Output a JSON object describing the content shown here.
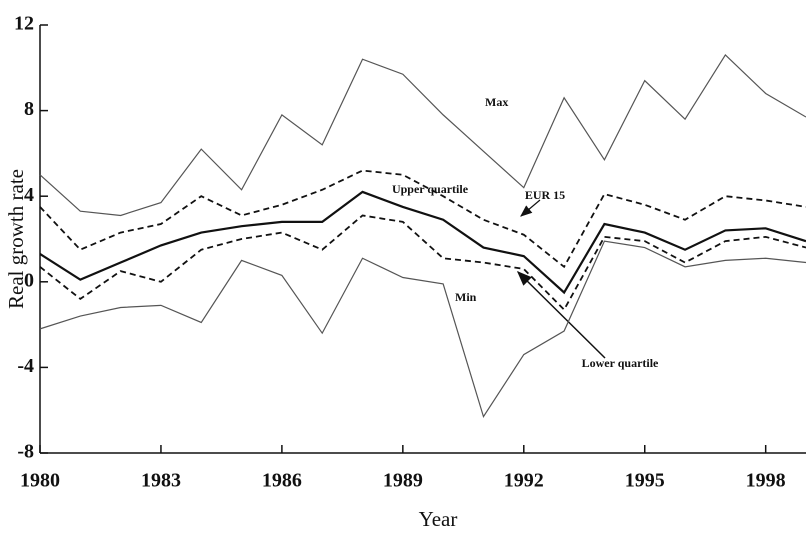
{
  "chart_data": {
    "type": "line",
    "x_label": "Year",
    "y_label": "Real growth rate",
    "x": [
      1980,
      1981,
      1982,
      1983,
      1984,
      1985,
      1986,
      1987,
      1988,
      1989,
      1990,
      1991,
      1992,
      1993,
      1994,
      1995,
      1996,
      1997,
      1998,
      1999
    ],
    "series": [
      {
        "name": "Max",
        "color": "#555555",
        "dash": "none",
        "width": 1.2,
        "values": [
          5.0,
          3.3,
          3.1,
          3.7,
          6.2,
          4.3,
          7.8,
          6.4,
          10.4,
          9.7,
          7.8,
          6.1,
          4.4,
          8.6,
          5.7,
          9.4,
          7.6,
          10.6,
          8.8,
          7.7
        ]
      },
      {
        "name": "Upper quartile",
        "color": "#111111",
        "dash": "6,4",
        "width": 1.8,
        "values": [
          3.5,
          1.5,
          2.3,
          2.7,
          4.0,
          3.1,
          3.6,
          4.3,
          5.2,
          5.0,
          4.0,
          2.9,
          2.2,
          0.7,
          4.1,
          3.6,
          2.9,
          4.0,
          3.8,
          3.5
        ]
      },
      {
        "name": "EUR 15",
        "color": "#111111",
        "dash": "none",
        "width": 2.2,
        "values": [
          1.3,
          0.1,
          0.9,
          1.7,
          2.3,
          2.6,
          2.8,
          2.8,
          4.2,
          3.5,
          2.9,
          1.6,
          1.2,
          -0.5,
          2.7,
          2.3,
          1.5,
          2.4,
          2.5,
          1.9
        ]
      },
      {
        "name": "Lower quartile",
        "color": "#111111",
        "dash": "6,4",
        "width": 1.8,
        "values": [
          0.7,
          -0.8,
          0.5,
          0.0,
          1.5,
          2.0,
          2.3,
          1.5,
          3.1,
          2.8,
          1.1,
          0.9,
          0.6,
          -1.3,
          2.1,
          1.9,
          0.9,
          1.9,
          2.1,
          1.6
        ]
      },
      {
        "name": "Min",
        "color": "#555555",
        "dash": "none",
        "width": 1.2,
        "values": [
          -2.2,
          -1.6,
          -1.2,
          -1.1,
          -1.9,
          1.0,
          0.3,
          -2.4,
          1.1,
          0.2,
          -0.1,
          -6.3,
          -3.4,
          -2.3,
          1.9,
          1.6,
          0.7,
          1.0,
          1.1,
          0.9
        ]
      }
    ],
    "xlim": [
      1980,
      1999
    ],
    "xticks": [
      1980,
      1983,
      1986,
      1989,
      1992,
      1995,
      1998
    ],
    "ylim": [
      -8,
      12
    ],
    "yticks": [
      -8,
      -4,
      0,
      4,
      8,
      12
    ],
    "grid": false
  }
}
